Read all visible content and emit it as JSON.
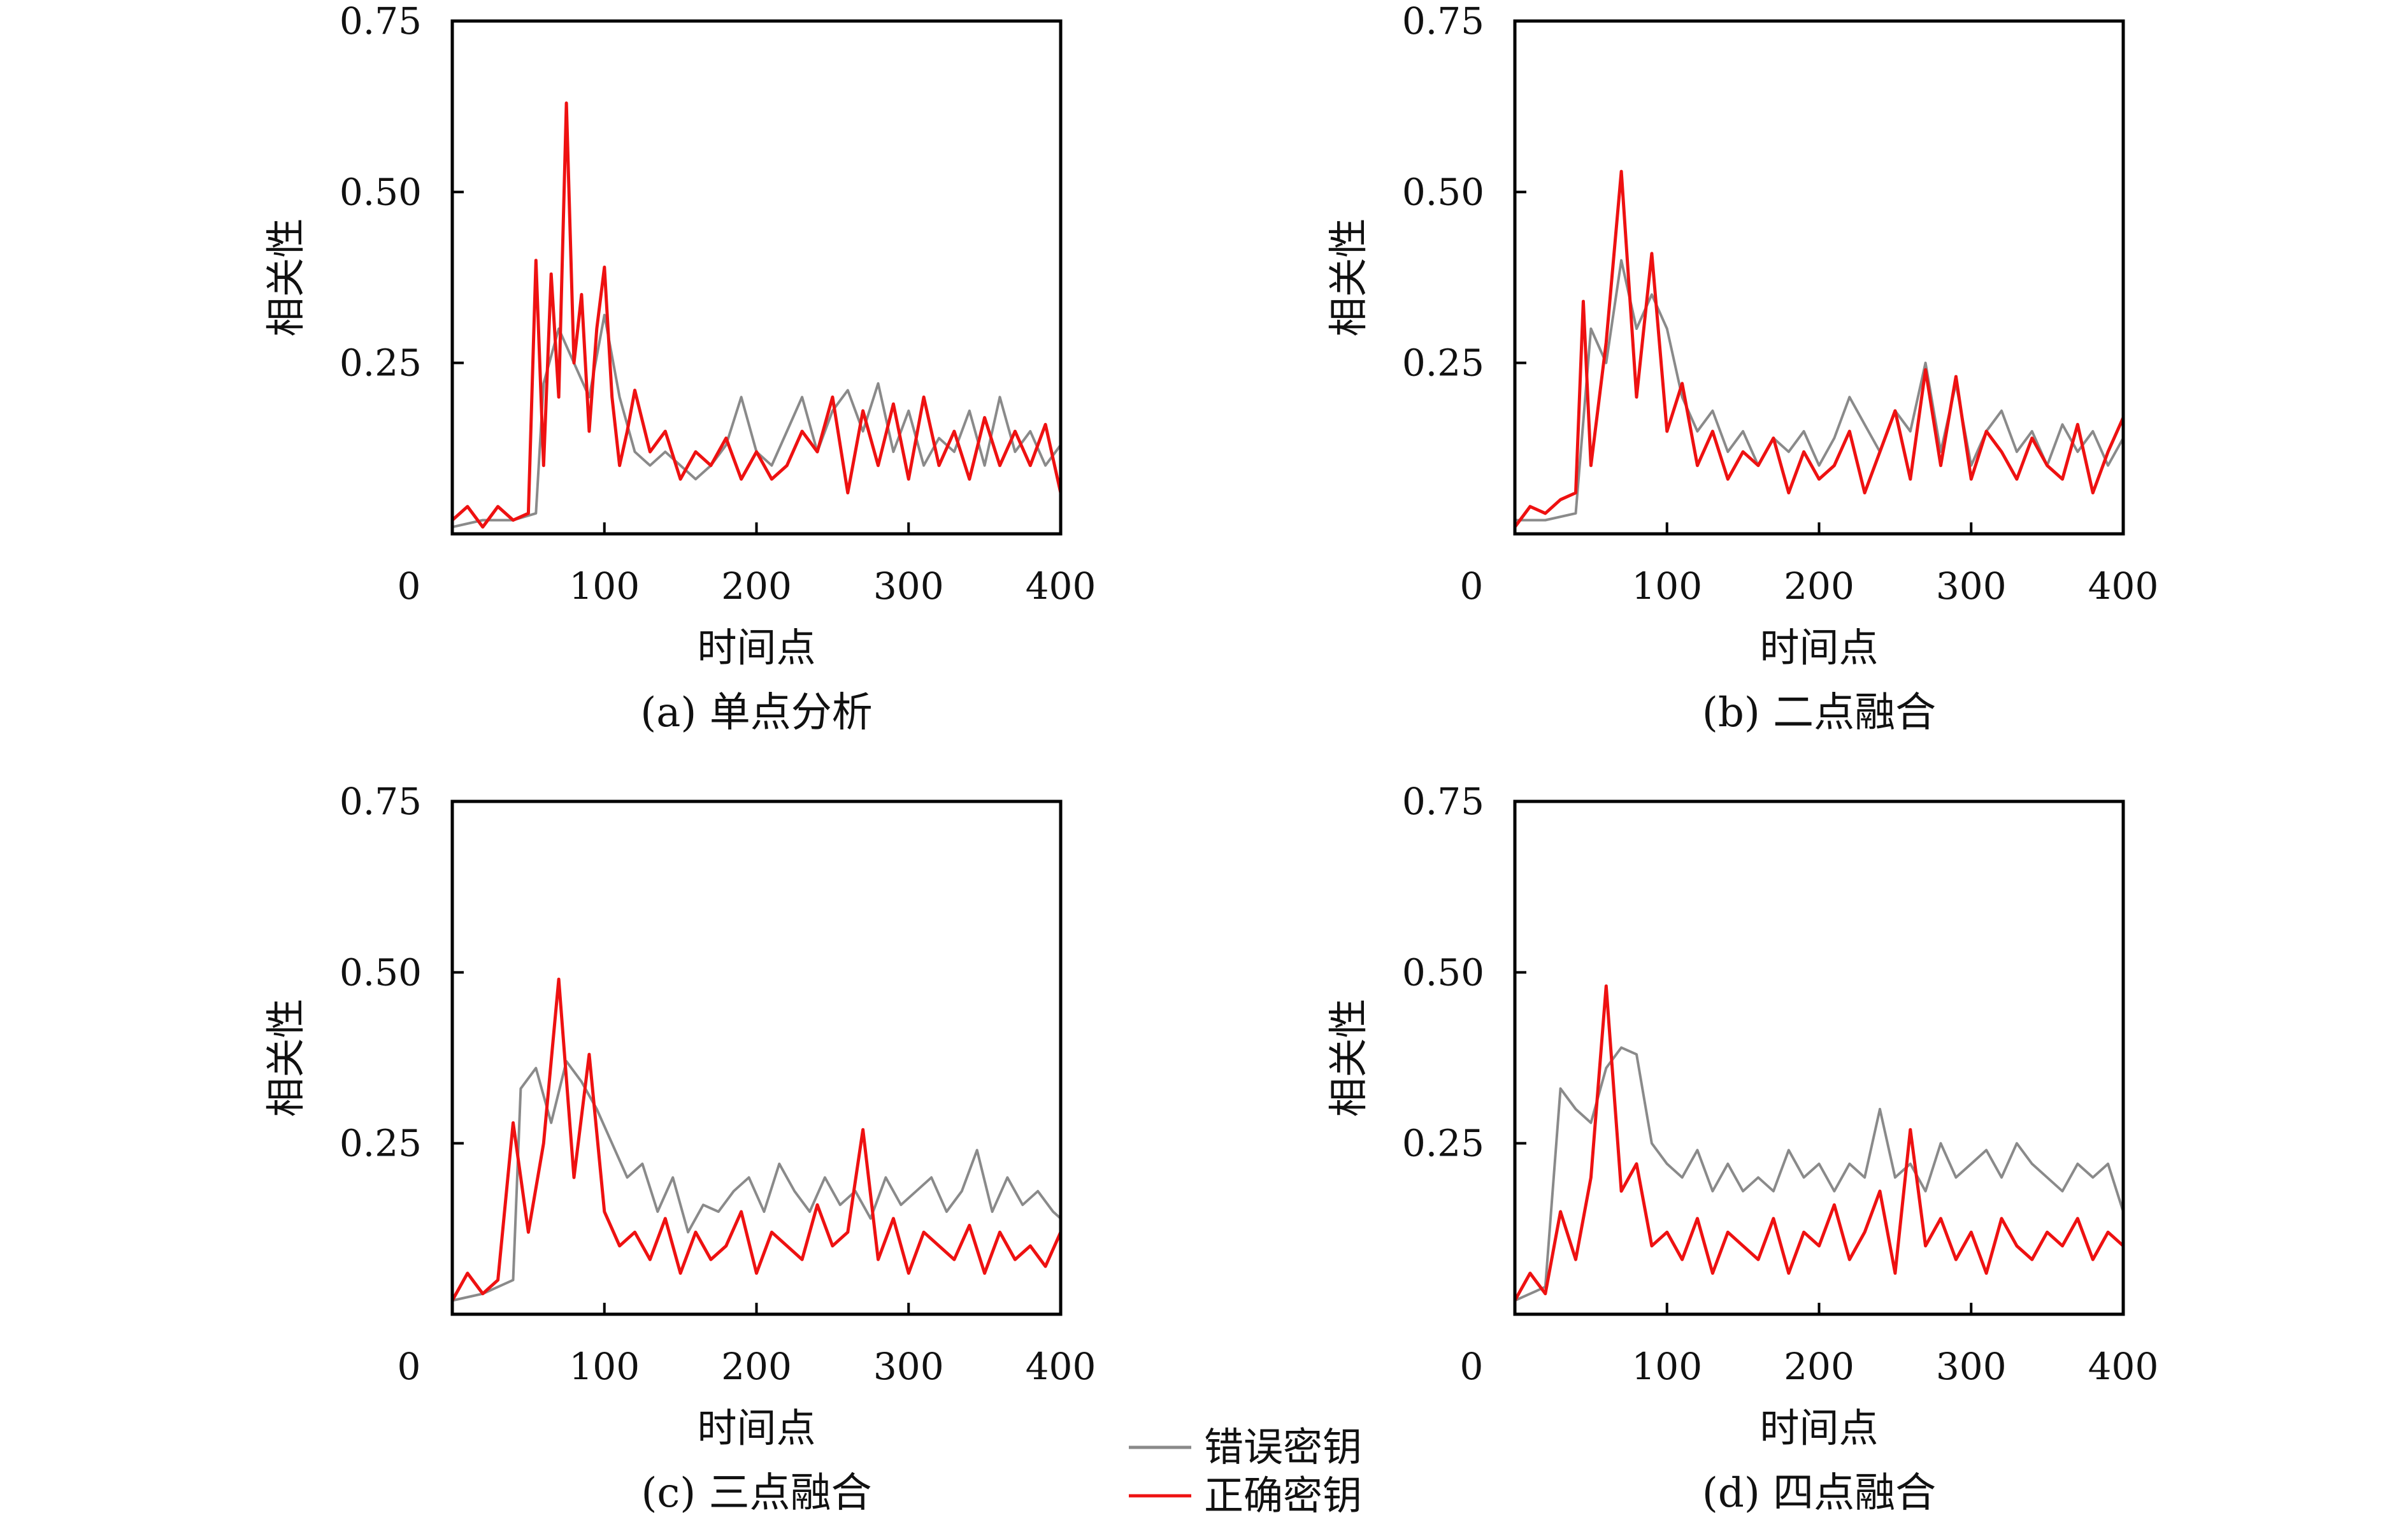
{
  "legend": {
    "items": [
      {
        "label": "错误密钥",
        "color": "#8a8a8a"
      },
      {
        "label": "正确密钥",
        "color": "#ee1111"
      }
    ],
    "placement": "bottom-center"
  },
  "chart_data": [
    {
      "type": "line",
      "caption": "(a) 单点分析",
      "xlabel": "时间点",
      "ylabel": "相关性",
      "xlim": [
        0,
        400
      ],
      "ylim": [
        0,
        0.75
      ],
      "xticks": [
        "0",
        "100",
        "200",
        "300",
        "400"
      ],
      "yticks": [
        "0.25",
        "0.50",
        "0.75"
      ],
      "grid": false,
      "series": [
        {
          "name": "错误密钥",
          "color": "#8a8a8a",
          "x": [
            0,
            20,
            40,
            55,
            60,
            70,
            80,
            90,
            100,
            110,
            120,
            130,
            140,
            150,
            160,
            170,
            180,
            190,
            200,
            210,
            220,
            230,
            240,
            250,
            260,
            270,
            280,
            290,
            300,
            310,
            320,
            330,
            340,
            350,
            360,
            370,
            380,
            390,
            400
          ],
          "y": [
            0.01,
            0.02,
            0.02,
            0.03,
            0.22,
            0.3,
            0.25,
            0.2,
            0.32,
            0.2,
            0.12,
            0.1,
            0.12,
            0.1,
            0.08,
            0.1,
            0.13,
            0.2,
            0.12,
            0.1,
            0.15,
            0.2,
            0.12,
            0.18,
            0.21,
            0.15,
            0.22,
            0.12,
            0.18,
            0.1,
            0.14,
            0.12,
            0.18,
            0.1,
            0.2,
            0.12,
            0.15,
            0.1,
            0.13
          ]
        },
        {
          "name": "正确密钥",
          "color": "#ee1111",
          "x": [
            0,
            10,
            20,
            30,
            40,
            50,
            55,
            60,
            65,
            70,
            75,
            80,
            85,
            90,
            95,
            100,
            105,
            110,
            115,
            120,
            130,
            140,
            150,
            160,
            170,
            180,
            190,
            200,
            210,
            220,
            230,
            240,
            250,
            260,
            270,
            280,
            290,
            300,
            310,
            320,
            330,
            340,
            350,
            360,
            370,
            380,
            390,
            400
          ],
          "y": [
            0.02,
            0.04,
            0.01,
            0.04,
            0.02,
            0.03,
            0.4,
            0.1,
            0.38,
            0.2,
            0.63,
            0.25,
            0.35,
            0.15,
            0.3,
            0.39,
            0.2,
            0.1,
            0.15,
            0.21,
            0.12,
            0.15,
            0.08,
            0.12,
            0.1,
            0.14,
            0.08,
            0.12,
            0.08,
            0.1,
            0.15,
            0.12,
            0.2,
            0.06,
            0.18,
            0.1,
            0.19,
            0.08,
            0.2,
            0.1,
            0.15,
            0.08,
            0.17,
            0.1,
            0.15,
            0.1,
            0.16,
            0.06
          ]
        }
      ]
    },
    {
      "type": "line",
      "caption": "(b) 二点融合",
      "xlabel": "时间点",
      "ylabel": "相关性",
      "xlim": [
        0,
        400
      ],
      "ylim": [
        0,
        0.75
      ],
      "xticks": [
        "0",
        "100",
        "200",
        "300",
        "400"
      ],
      "yticks": [
        "0.25",
        "0.50",
        "0.75"
      ],
      "grid": false,
      "series": [
        {
          "name": "错误密钥",
          "color": "#8a8a8a",
          "x": [
            0,
            20,
            40,
            50,
            60,
            70,
            80,
            90,
            100,
            110,
            120,
            130,
            140,
            150,
            160,
            170,
            180,
            190,
            200,
            210,
            220,
            230,
            240,
            250,
            260,
            270,
            280,
            290,
            300,
            310,
            320,
            330,
            340,
            350,
            360,
            370,
            380,
            390,
            400
          ],
          "y": [
            0.02,
            0.02,
            0.03,
            0.3,
            0.25,
            0.4,
            0.3,
            0.35,
            0.3,
            0.2,
            0.15,
            0.18,
            0.12,
            0.15,
            0.1,
            0.14,
            0.12,
            0.15,
            0.1,
            0.14,
            0.2,
            0.16,
            0.12,
            0.18,
            0.15,
            0.25,
            0.12,
            0.22,
            0.1,
            0.15,
            0.18,
            0.12,
            0.15,
            0.1,
            0.16,
            0.12,
            0.15,
            0.1,
            0.14
          ]
        },
        {
          "name": "正确密钥",
          "color": "#ee1111",
          "x": [
            0,
            10,
            20,
            30,
            40,
            45,
            50,
            60,
            70,
            80,
            90,
            100,
            110,
            120,
            130,
            140,
            150,
            160,
            170,
            180,
            190,
            200,
            210,
            220,
            230,
            240,
            250,
            260,
            270,
            280,
            290,
            300,
            310,
            320,
            330,
            340,
            350,
            360,
            370,
            380,
            390,
            400
          ],
          "y": [
            0.01,
            0.04,
            0.03,
            0.05,
            0.06,
            0.34,
            0.1,
            0.28,
            0.53,
            0.2,
            0.41,
            0.15,
            0.22,
            0.1,
            0.15,
            0.08,
            0.12,
            0.1,
            0.14,
            0.06,
            0.12,
            0.08,
            0.1,
            0.15,
            0.06,
            0.12,
            0.18,
            0.08,
            0.24,
            0.1,
            0.23,
            0.08,
            0.15,
            0.12,
            0.08,
            0.14,
            0.1,
            0.08,
            0.16,
            0.06,
            0.12,
            0.17
          ]
        }
      ]
    },
    {
      "type": "line",
      "caption": "(c) 三点融合",
      "xlabel": "时间点",
      "ylabel": "相关性",
      "xlim": [
        0,
        400
      ],
      "ylim": [
        0,
        0.75
      ],
      "xticks": [
        "0",
        "100",
        "200",
        "300",
        "400"
      ],
      "yticks": [
        "0.25",
        "0.50",
        "0.75"
      ],
      "grid": false,
      "series": [
        {
          "name": "错误密钥",
          "color": "#8a8a8a",
          "x": [
            0,
            20,
            40,
            45,
            55,
            65,
            75,
            85,
            95,
            105,
            115,
            125,
            135,
            145,
            155,
            165,
            175,
            185,
            195,
            205,
            215,
            225,
            235,
            245,
            255,
            265,
            275,
            285,
            295,
            305,
            315,
            325,
            335,
            345,
            355,
            365,
            375,
            385,
            395,
            400
          ],
          "y": [
            0.02,
            0.03,
            0.05,
            0.33,
            0.36,
            0.28,
            0.37,
            0.34,
            0.3,
            0.25,
            0.2,
            0.22,
            0.15,
            0.2,
            0.12,
            0.16,
            0.15,
            0.18,
            0.2,
            0.15,
            0.22,
            0.18,
            0.15,
            0.2,
            0.16,
            0.18,
            0.14,
            0.2,
            0.16,
            0.18,
            0.2,
            0.15,
            0.18,
            0.24,
            0.15,
            0.2,
            0.16,
            0.18,
            0.15,
            0.14
          ]
        },
        {
          "name": "正确密钥",
          "color": "#ee1111",
          "x": [
            0,
            10,
            20,
            30,
            40,
            50,
            60,
            70,
            80,
            90,
            100,
            110,
            120,
            130,
            140,
            150,
            160,
            170,
            180,
            190,
            200,
            210,
            220,
            230,
            240,
            250,
            260,
            270,
            280,
            290,
            300,
            310,
            320,
            330,
            340,
            350,
            360,
            370,
            380,
            390,
            400
          ],
          "y": [
            0.02,
            0.06,
            0.03,
            0.05,
            0.28,
            0.12,
            0.25,
            0.49,
            0.2,
            0.38,
            0.15,
            0.1,
            0.12,
            0.08,
            0.14,
            0.06,
            0.12,
            0.08,
            0.1,
            0.15,
            0.06,
            0.12,
            0.1,
            0.08,
            0.16,
            0.1,
            0.12,
            0.27,
            0.08,
            0.14,
            0.06,
            0.12,
            0.1,
            0.08,
            0.13,
            0.06,
            0.12,
            0.08,
            0.1,
            0.07,
            0.12
          ]
        }
      ]
    },
    {
      "type": "line",
      "caption": "(d) 四点融合",
      "xlabel": "时间点",
      "ylabel": "相关性",
      "xlim": [
        0,
        400
      ],
      "ylim": [
        0,
        0.75
      ],
      "xticks": [
        "0",
        "100",
        "200",
        "300",
        "400"
      ],
      "yticks": [
        "0.25",
        "0.50",
        "0.75"
      ],
      "grid": false,
      "series": [
        {
          "name": "错误密钥",
          "color": "#8a8a8a",
          "x": [
            0,
            20,
            30,
            40,
            50,
            60,
            70,
            80,
            90,
            100,
            110,
            120,
            130,
            140,
            150,
            160,
            170,
            180,
            190,
            200,
            210,
            220,
            230,
            240,
            250,
            260,
            270,
            280,
            290,
            300,
            310,
            320,
            330,
            340,
            350,
            360,
            370,
            380,
            390,
            400
          ],
          "y": [
            0.02,
            0.04,
            0.33,
            0.3,
            0.28,
            0.36,
            0.39,
            0.38,
            0.25,
            0.22,
            0.2,
            0.24,
            0.18,
            0.22,
            0.18,
            0.2,
            0.18,
            0.24,
            0.2,
            0.22,
            0.18,
            0.22,
            0.2,
            0.3,
            0.2,
            0.22,
            0.18,
            0.25,
            0.2,
            0.22,
            0.24,
            0.2,
            0.25,
            0.22,
            0.2,
            0.18,
            0.22,
            0.2,
            0.22,
            0.15
          ]
        },
        {
          "name": "正确密钥",
          "color": "#ee1111",
          "x": [
            0,
            10,
            20,
            30,
            40,
            50,
            60,
            70,
            80,
            90,
            100,
            110,
            120,
            130,
            140,
            150,
            160,
            170,
            180,
            190,
            200,
            210,
            220,
            230,
            240,
            250,
            260,
            270,
            280,
            290,
            300,
            310,
            320,
            330,
            340,
            350,
            360,
            370,
            380,
            390,
            400
          ],
          "y": [
            0.02,
            0.06,
            0.03,
            0.15,
            0.08,
            0.2,
            0.48,
            0.18,
            0.22,
            0.1,
            0.12,
            0.08,
            0.14,
            0.06,
            0.12,
            0.1,
            0.08,
            0.14,
            0.06,
            0.12,
            0.1,
            0.16,
            0.08,
            0.12,
            0.18,
            0.06,
            0.27,
            0.1,
            0.14,
            0.08,
            0.12,
            0.06,
            0.14,
            0.1,
            0.08,
            0.12,
            0.1,
            0.14,
            0.08,
            0.12,
            0.1
          ]
        }
      ]
    }
  ]
}
